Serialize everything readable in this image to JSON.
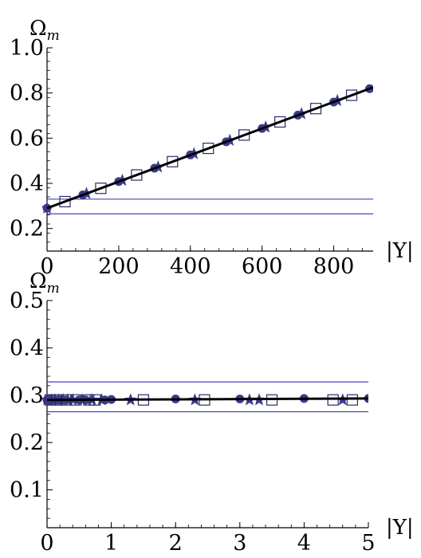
{
  "chart_data": [
    {
      "type": "scatter",
      "panel": "top",
      "ylabel": "Ωm",
      "ylabel_main": "Ω",
      "ylabel_sub": "m",
      "xlabel": "|Y|",
      "xlim": [
        0,
        910
      ],
      "ylim": [
        0.1,
        1.0
      ],
      "x_ticks": [
        0,
        200,
        400,
        600,
        800
      ],
      "x_tick_labels": [
        "0",
        "200",
        "400",
        "600",
        "800"
      ],
      "y_ticks": [
        0.2,
        0.4,
        0.6,
        0.8,
        1.0
      ],
      "y_tick_labels": [
        "0.2",
        "0.4",
        "0.6",
        "0.8",
        "1.0"
      ],
      "grid": false,
      "band": [
        0.265,
        0.33
      ],
      "fit_line": {
        "x": [
          0,
          910
        ],
        "y": [
          0.29,
          0.825
        ]
      },
      "series": [
        {
          "marker": "circle",
          "x": [
            0,
            100,
            200,
            300,
            400,
            500,
            600,
            700,
            800,
            900
          ],
          "y": [
            0.29,
            0.349,
            0.408,
            0.467,
            0.526,
            0.584,
            0.643,
            0.702,
            0.76,
            0.819
          ]
        },
        {
          "marker": "star",
          "x": [
            0,
            110,
            210,
            310,
            410,
            510,
            610,
            710,
            810
          ],
          "y": [
            0.29,
            0.355,
            0.413,
            0.472,
            0.531,
            0.59,
            0.649,
            0.708,
            0.766
          ]
        },
        {
          "marker": "square-open",
          "x": [
            50,
            150,
            250,
            350,
            450,
            550,
            650,
            750,
            850
          ],
          "y": [
            0.319,
            0.378,
            0.437,
            0.496,
            0.555,
            0.614,
            0.672,
            0.731,
            0.79
          ]
        }
      ]
    },
    {
      "type": "scatter",
      "panel": "bottom",
      "ylabel": "Ωm",
      "ylabel_main": "Ω",
      "ylabel_sub": "m",
      "xlabel": "|Y|",
      "xlim": [
        0,
        5
      ],
      "ylim": [
        0.02,
        0.5
      ],
      "x_ticks": [
        0,
        1,
        2,
        3,
        4,
        5
      ],
      "x_tick_labels": [
        "0",
        "1",
        "2",
        "3",
        "4",
        "5"
      ],
      "y_ticks": [
        0.1,
        0.2,
        0.3,
        0.4,
        0.5
      ],
      "y_tick_labels": [
        "0.1",
        "0.2",
        "0.3",
        "0.4",
        "0.5"
      ],
      "grid": false,
      "band": [
        0.265,
        0.328
      ],
      "fit_line": {
        "x": [
          0,
          5
        ],
        "y": [
          0.29,
          0.293
        ]
      },
      "series": [
        {
          "marker": "circle",
          "x": [
            0,
            0.05,
            0.1,
            0.15,
            0.2,
            0.25,
            0.3,
            0.5,
            0.6,
            0.9,
            1.0,
            2.0,
            3.0,
            4.0,
            5.0
          ],
          "y": [
            0.29,
            0.29,
            0.29,
            0.29,
            0.29,
            0.29,
            0.29,
            0.29,
            0.29,
            0.29,
            0.291,
            0.292,
            0.292,
            0.293,
            0.293
          ]
        },
        {
          "marker": "star",
          "x": [
            0,
            0.07,
            0.12,
            0.18,
            0.25,
            0.32,
            0.4,
            0.55,
            0.7,
            0.85,
            1.3,
            2.3,
            3.15,
            3.3,
            4.6
          ],
          "y": [
            0.29,
            0.29,
            0.29,
            0.29,
            0.29,
            0.29,
            0.29,
            0.29,
            0.29,
            0.29,
            0.29,
            0.29,
            0.29,
            0.29,
            0.29
          ]
        },
        {
          "marker": "square-open",
          "x": [
            0.05,
            0.15,
            0.3,
            0.45,
            0.65,
            0.75,
            1.5,
            2.45,
            3.5,
            4.45,
            4.75
          ],
          "y": [
            0.29,
            0.29,
            0.29,
            0.29,
            0.29,
            0.29,
            0.29,
            0.29,
            0.29,
            0.29,
            0.29
          ]
        }
      ]
    }
  ]
}
